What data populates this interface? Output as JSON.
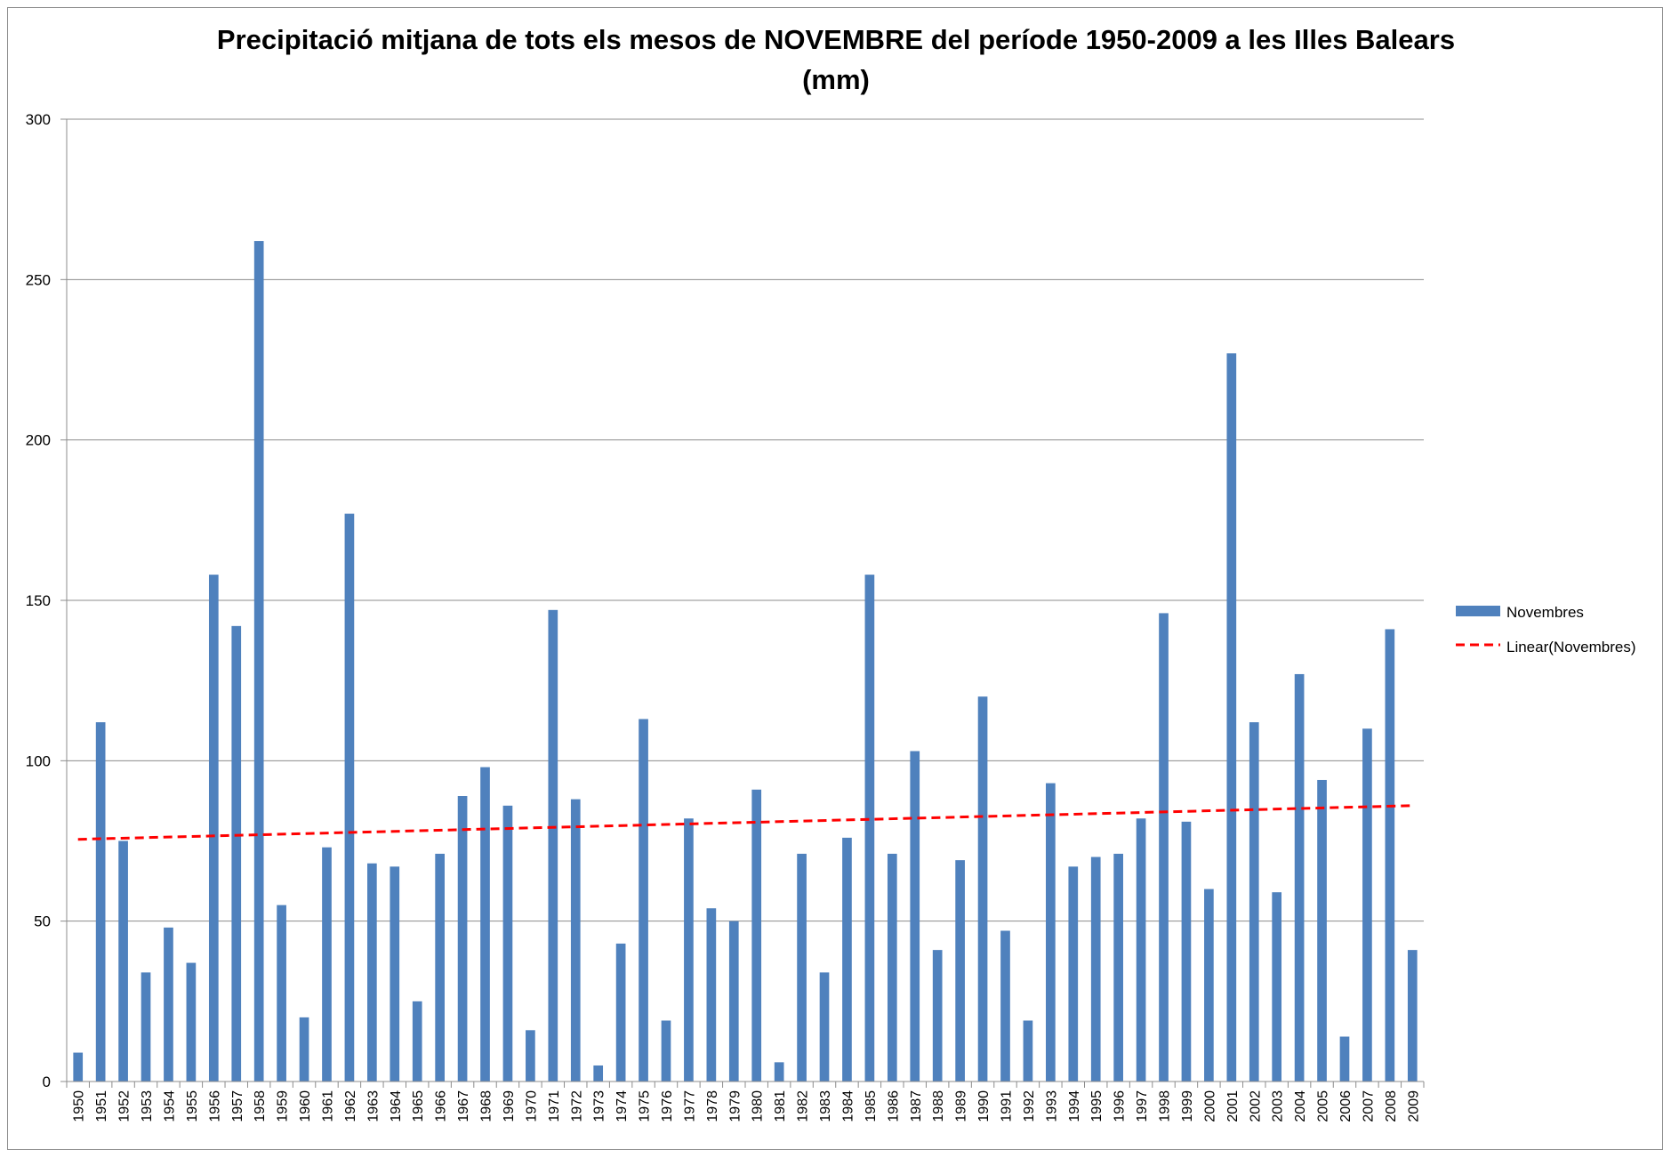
{
  "chart_data": {
    "type": "bar",
    "title": "Precipitació mitjana de tots els mesos de NOVEMBRE del període 1950-2009 a les Illes Balears",
    "subtitle": "(mm)",
    "xlabel": "",
    "ylabel": "",
    "ylim": [
      0,
      300
    ],
    "yticks": [
      0,
      50,
      100,
      150,
      200,
      250,
      300
    ],
    "grid": true,
    "legend_position": "right",
    "categories": [
      "1950",
      "1951",
      "1952",
      "1953",
      "1954",
      "1955",
      "1956",
      "1957",
      "1958",
      "1959",
      "1960",
      "1961",
      "1962",
      "1963",
      "1964",
      "1965",
      "1966",
      "1967",
      "1968",
      "1969",
      "1970",
      "1971",
      "1972",
      "1973",
      "1974",
      "1975",
      "1976",
      "1977",
      "1978",
      "1979",
      "1980",
      "1981",
      "1982",
      "1983",
      "1984",
      "1985",
      "1986",
      "1987",
      "1988",
      "1989",
      "1990",
      "1991",
      "1992",
      "1993",
      "1994",
      "1995",
      "1996",
      "1997",
      "1998",
      "1999",
      "2000",
      "2001",
      "2002",
      "2003",
      "2004",
      "2005",
      "2006",
      "2007",
      "2008",
      "2009"
    ],
    "series": [
      {
        "name": "Novembres",
        "type": "bar",
        "color": "#4f81bd",
        "values": [
          9,
          112,
          75,
          34,
          48,
          37,
          158,
          142,
          262,
          55,
          20,
          73,
          177,
          68,
          67,
          25,
          71,
          89,
          98,
          86,
          16,
          147,
          88,
          5,
          43,
          113,
          19,
          82,
          54,
          50,
          91,
          6,
          71,
          34,
          76,
          158,
          71,
          103,
          41,
          69,
          120,
          47,
          19,
          93,
          67,
          70,
          71,
          82,
          146,
          81,
          60,
          227,
          112,
          59,
          127,
          94,
          14,
          110,
          141,
          41
        ]
      },
      {
        "name": "Linear(Novembres)",
        "type": "trendline",
        "color": "#ff0000",
        "style": "dashed",
        "start": 75.5,
        "end": 86
      }
    ]
  }
}
